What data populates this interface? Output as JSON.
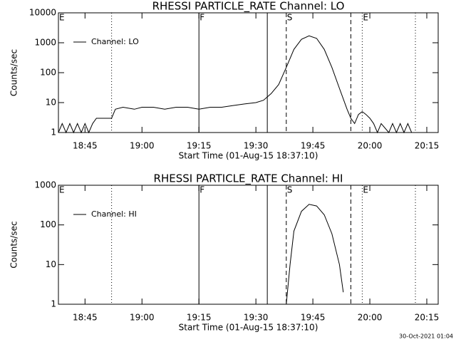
{
  "chart_data": [
    {
      "type": "line",
      "title": "RHESSI PARTICLE_RATE Channel: LO",
      "xlabel": "Start Time (01-Aug-15 18:37:10)",
      "ylabel": "Counts/sec",
      "log_y": true,
      "legend": "upper left",
      "xlim": [
        "18:38",
        "20:18"
      ],
      "xticks": [
        "18:45",
        "19:00",
        "19:15",
        "19:30",
        "19:45",
        "20:00",
        "20:15"
      ],
      "ylim": [
        1,
        10000
      ],
      "yticks": [
        1,
        10,
        100,
        1000,
        10000
      ],
      "x": [
        "18:38",
        "18:39",
        "18:40",
        "18:41",
        "18:42",
        "18:43",
        "18:44",
        "18:45",
        "18:46",
        "18:47",
        "18:48",
        "18:50",
        "18:52",
        "18:53",
        "18:55",
        "18:58",
        "19:00",
        "19:03",
        "19:06",
        "19:09",
        "19:12",
        "19:15",
        "19:18",
        "19:21",
        "19:24",
        "19:27",
        "19:30",
        "19:32",
        "19:34",
        "19:36",
        "19:38",
        "19:40",
        "19:42",
        "19:44",
        "19:46",
        "19:48",
        "19:50",
        "19:52",
        "19:54",
        "19:55",
        "19:56",
        "19:57",
        "19:58",
        "19:59",
        "20:00",
        "20:01",
        "20:02",
        "20:03",
        "20:05",
        "20:06",
        "20:07",
        "20:08",
        "20:09",
        "20:10",
        "20:11"
      ],
      "series": [
        {
          "name": "Channel: LO",
          "color": "#000000",
          "values": [
            1,
            2,
            1,
            2,
            1,
            2,
            1,
            2,
            1,
            2,
            3,
            3,
            3,
            6,
            7,
            6,
            7,
            7,
            6,
            7,
            7,
            6,
            7,
            7,
            8,
            9,
            10,
            12,
            20,
            40,
            150,
            600,
            1300,
            1700,
            1400,
            600,
            150,
            30,
            6,
            3,
            2,
            4,
            5,
            4,
            3,
            2,
            1,
            2,
            1,
            2,
            1,
            2,
            1,
            2,
            1
          ]
        }
      ],
      "markers": [
        {
          "x": "18:38",
          "style": "dotted",
          "label": "E"
        },
        {
          "x": "18:52",
          "style": "dotted"
        },
        {
          "x": "19:15",
          "style": "solid",
          "label": "F"
        },
        {
          "x": "19:33",
          "style": "solid"
        },
        {
          "x": "19:38",
          "style": "dashed",
          "label": "S"
        },
        {
          "x": "19:55",
          "style": "dashed"
        },
        {
          "x": "19:58",
          "style": "dotted",
          "label": "E"
        },
        {
          "x": "20:12",
          "style": "dotted"
        }
      ]
    },
    {
      "type": "line",
      "title": "RHESSI PARTICLE_RATE Channel: HI",
      "xlabel": "Start Time (01-Aug-15 18:37:10)",
      "ylabel": "Counts/sec",
      "log_y": true,
      "legend": "upper left",
      "xlim": [
        "18:38",
        "20:18"
      ],
      "xticks": [
        "18:45",
        "19:00",
        "19:15",
        "19:30",
        "19:45",
        "20:00",
        "20:15"
      ],
      "ylim": [
        1,
        1000
      ],
      "yticks": [
        1,
        10,
        100,
        1000
      ],
      "x": [
        "19:38",
        "19:39",
        "19:40",
        "19:42",
        "19:44",
        "19:46",
        "19:48",
        "19:50",
        "19:52",
        "19:53"
      ],
      "series": [
        {
          "name": "Channel: HI",
          "color": "#000000",
          "values": [
            1,
            10,
            70,
            220,
            330,
            300,
            180,
            60,
            10,
            2
          ]
        }
      ],
      "markers": [
        {
          "x": "18:38",
          "style": "dotted",
          "label": "E"
        },
        {
          "x": "18:52",
          "style": "dotted"
        },
        {
          "x": "19:15",
          "style": "solid",
          "label": "F"
        },
        {
          "x": "19:33",
          "style": "solid"
        },
        {
          "x": "19:38",
          "style": "dashed",
          "label": "S"
        },
        {
          "x": "19:55",
          "style": "dashed"
        },
        {
          "x": "19:58",
          "style": "dotted",
          "label": "E"
        },
        {
          "x": "20:12",
          "style": "dotted"
        }
      ]
    }
  ],
  "footer": "30-Oct-2021 01:04"
}
